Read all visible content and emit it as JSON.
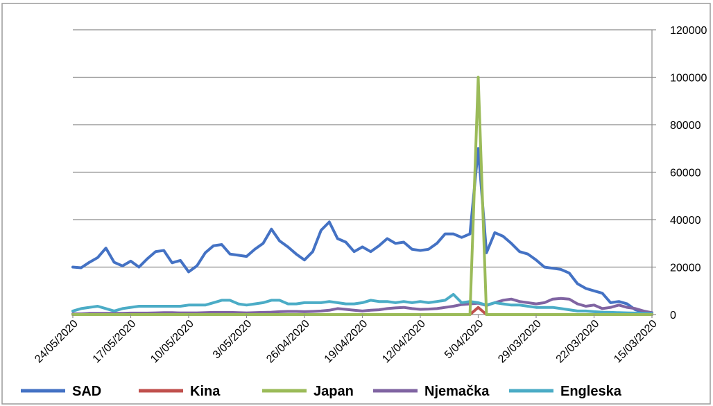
{
  "chart_data": {
    "type": "line",
    "title": "",
    "xlabel": "",
    "ylabel": "",
    "y_axis_side": "right",
    "ylim": [
      0,
      120000
    ],
    "y_ticks": [
      "0",
      "20000",
      "40000",
      "60000",
      "80000",
      "100000",
      "120000"
    ],
    "grid": "horizontal",
    "legend_position": "bottom",
    "x_order": "reverse-chronological",
    "x_tick_labels": [
      "24/05/2020",
      "17/05/2020",
      "10/05/2020",
      "3/05/2020",
      "26/04/2020",
      "19/04/2020",
      "12/04/2020",
      "5/04/2020",
      "29/03/2020",
      "22/03/2020",
      "15/03/2020"
    ],
    "x": [
      "24/05/2020",
      "23/05/2020",
      "22/05/2020",
      "21/05/2020",
      "20/05/2020",
      "19/05/2020",
      "18/05/2020",
      "17/05/2020",
      "16/05/2020",
      "15/05/2020",
      "14/05/2020",
      "13/05/2020",
      "12/05/2020",
      "11/05/2020",
      "10/05/2020",
      "9/05/2020",
      "8/05/2020",
      "7/05/2020",
      "6/05/2020",
      "5/05/2020",
      "4/05/2020",
      "3/05/2020",
      "2/05/2020",
      "1/05/2020",
      "30/04/2020",
      "29/04/2020",
      "28/04/2020",
      "27/04/2020",
      "26/04/2020",
      "25/04/2020",
      "24/04/2020",
      "23/04/2020",
      "22/04/2020",
      "21/04/2020",
      "20/04/2020",
      "19/04/2020",
      "18/04/2020",
      "17/04/2020",
      "16/04/2020",
      "15/04/2020",
      "14/04/2020",
      "13/04/2020",
      "12/04/2020",
      "11/04/2020",
      "10/04/2020",
      "9/04/2020",
      "8/04/2020",
      "7/04/2020",
      "6/04/2020",
      "5/04/2020",
      "4/04/2020",
      "3/04/2020",
      "2/04/2020",
      "1/04/2020",
      "31/03/2020",
      "30/03/2020",
      "29/03/2020",
      "28/03/2020",
      "27/03/2020",
      "26/03/2020",
      "25/03/2020",
      "24/03/2020",
      "23/03/2020",
      "22/03/2020",
      "21/03/2020",
      "20/03/2020",
      "19/03/2020",
      "18/03/2020",
      "17/03/2020",
      "16/03/2020",
      "15/03/2020"
    ],
    "series": [
      {
        "name": "SAD",
        "color": "#4472c4",
        "values": [
          20000,
          19700,
          22000,
          24000,
          28000,
          22000,
          20500,
          22500,
          20000,
          23500,
          26500,
          27000,
          21800,
          22800,
          18000,
          20500,
          26000,
          29000,
          29500,
          25500,
          25000,
          24500,
          27500,
          30000,
          36000,
          31000,
          28500,
          25500,
          23000,
          26500,
          35500,
          39000,
          32000,
          30500,
          26500,
          28500,
          26500,
          29000,
          32000,
          30000,
          30500,
          27500,
          27000,
          27500,
          30000,
          34000,
          34000,
          32500,
          34000,
          70000,
          26000,
          34500,
          33000,
          30000,
          26500,
          25500,
          23000,
          20000,
          19500,
          19000,
          17500,
          13000,
          11000,
          10000,
          9000,
          5000,
          5500,
          4500,
          2000,
          1000,
          800
        ],
        "legend_label": "SAD"
      },
      {
        "name": "Kina",
        "color": "#c0504d",
        "values": [
          0,
          0,
          0,
          0,
          0,
          0,
          0,
          0,
          0,
          0,
          0,
          0,
          0,
          0,
          0,
          0,
          0,
          0,
          0,
          0,
          0,
          0,
          0,
          0,
          0,
          0,
          0,
          0,
          0,
          0,
          0,
          0,
          0,
          0,
          0,
          0,
          0,
          0,
          0,
          0,
          0,
          0,
          0,
          0,
          0,
          0,
          0,
          0,
          0,
          3000,
          0,
          0,
          0,
          0,
          0,
          0,
          0,
          0,
          0,
          0,
          0,
          0,
          0,
          0,
          0,
          0,
          0,
          0,
          0,
          0,
          0
        ],
        "legend_label": "Kina"
      },
      {
        "name": "Japan",
        "color": "#9bbb59",
        "values": [
          0,
          0,
          0,
          0,
          0,
          0,
          0,
          0,
          0,
          0,
          0,
          0,
          0,
          0,
          0,
          0,
          0,
          0,
          0,
          0,
          0,
          0,
          0,
          0,
          0,
          0,
          0,
          0,
          0,
          0,
          0,
          0,
          0,
          0,
          0,
          0,
          0,
          0,
          0,
          0,
          0,
          0,
          0,
          0,
          0,
          0,
          0,
          0,
          0,
          100000,
          0,
          0,
          0,
          0,
          0,
          0,
          0,
          0,
          0,
          0,
          0,
          0,
          0,
          0,
          0,
          0,
          0,
          0,
          0,
          0,
          0
        ],
        "legend_label": "Japan"
      },
      {
        "name": "Njemačka",
        "color": "#8064a2",
        "values": [
          300,
          300,
          500,
          500,
          500,
          500,
          500,
          600,
          600,
          600,
          700,
          800,
          800,
          700,
          700,
          700,
          800,
          900,
          900,
          900,
          800,
          700,
          800,
          900,
          1000,
          1200,
          1300,
          1300,
          1200,
          1300,
          1500,
          1800,
          2500,
          2200,
          1800,
          1500,
          1800,
          2000,
          2500,
          2800,
          3000,
          2500,
          2200,
          2300,
          2500,
          3000,
          3500,
          4200,
          4500,
          4800,
          3800,
          5000,
          6000,
          6500,
          5500,
          5000,
          4500,
          5000,
          6500,
          6800,
          6500,
          4500,
          3500,
          4000,
          2500,
          3000,
          4000,
          3000,
          2500,
          1500,
          800
        ],
        "legend_label": "Njemačka"
      },
      {
        "name": "Engleska",
        "color": "#4bacc6",
        "values": [
          1500,
          2500,
          3000,
          3500,
          2500,
          1500,
          2500,
          3000,
          3500,
          3500,
          3500,
          3500,
          3500,
          3500,
          4000,
          4000,
          4000,
          5000,
          6000,
          6000,
          4500,
          4000,
          4500,
          5000,
          6000,
          6000,
          4500,
          4500,
          5000,
          5000,
          5000,
          5500,
          5000,
          4500,
          4500,
          5000,
          6000,
          5500,
          5500,
          5000,
          5500,
          5000,
          5500,
          5000,
          5500,
          6000,
          8500,
          5000,
          5500,
          5000,
          4000,
          5000,
          4500,
          4000,
          4000,
          3500,
          3000,
          3000,
          3000,
          2500,
          2000,
          1500,
          1500,
          1200,
          1000,
          900,
          800,
          700,
          600,
          500,
          400
        ],
        "legend_label": "Engleska"
      }
    ]
  }
}
